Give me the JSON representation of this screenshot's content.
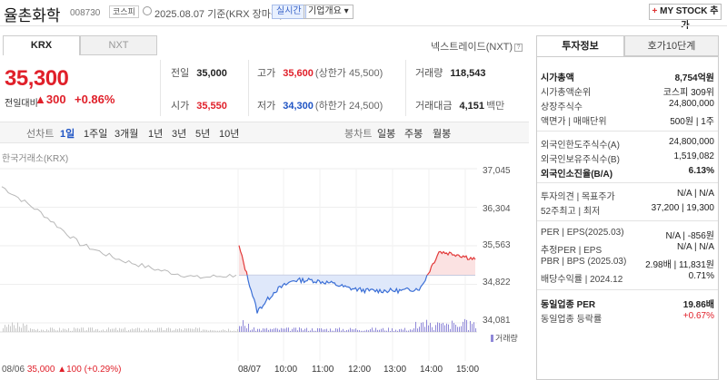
{
  "header": {
    "name": "율촌화학",
    "code": "008730",
    "market_badge": "코스피",
    "date_text": "2025.08.07 기준(KRX 장마감)",
    "realtime_label": "실시간",
    "overview_label": "기업개요 ▾",
    "mystock_label": "MY STOCK 추가",
    "mystock_plus": "+"
  },
  "tabs": {
    "krx": "KRX",
    "nxt": "NXT"
  },
  "next_trade_link": "넥스트레이드(NXT)",
  "qmark": "?",
  "quote": {
    "price": "35,300",
    "change_label": "전일대비",
    "change_abs": "▲300",
    "change_pct": "+0.86%"
  },
  "stats": {
    "prev_close_label": "전일",
    "prev_close": "35,000",
    "high_label": "고가",
    "high": "35,600",
    "upper_limit": "(상한가 45,500)",
    "volume_label": "거래량",
    "volume": "118,543",
    "open_label": "시가",
    "open": "35,550",
    "low_label": "저가",
    "low": "34,300",
    "lower_limit": "(하한가 24,500)",
    "value_label": "거래대금",
    "value": "4,151",
    "value_unit": "백만"
  },
  "periods": {
    "line_label": "선차트",
    "line": [
      "1일",
      "1주일",
      "3개월",
      "1년",
      "3년",
      "5년",
      "10년"
    ],
    "selected": "1일",
    "candle_label": "봉차트",
    "candle": [
      "일봉",
      "주봉",
      "월봉"
    ]
  },
  "chart_data": {
    "type": "line",
    "source": "한국거래소(KRX)",
    "y_ticks": [
      "37,045",
      "36,304",
      "35,563",
      "34,822",
      "34,081"
    ],
    "ylim": [
      34081,
      37045
    ],
    "prev_close": 35000,
    "x_ticks": [
      "08/06",
      "08/07",
      "10:00",
      "11:00",
      "12:00",
      "13:00",
      "14:00",
      "15:00"
    ],
    "volume_label": "거래량",
    "footer": {
      "date": "08/06",
      "price": "35,000",
      "change": "▲100",
      "pct": "(+0.29%)"
    },
    "series": [
      {
        "x": [
          "08/06 09:00",
          "08/06 10:00",
          "08/06 11:00",
          "08/06 12:00",
          "08/06 13:00",
          "08/06 14:00",
          "08/06 15:30"
        ],
        "values": [
          36700,
          36200,
          35600,
          35300,
          35100,
          34950,
          35000
        ]
      },
      {
        "x": [
          "09:00",
          "09:30",
          "10:00",
          "10:30",
          "11:00",
          "11:30",
          "12:00",
          "12:30",
          "13:00",
          "13:30",
          "14:00",
          "14:30",
          "15:00",
          "15:30"
        ],
        "values": [
          35550,
          34300,
          34700,
          34900,
          34900,
          34850,
          34750,
          34700,
          34700,
          34700,
          34750,
          35450,
          35400,
          35300
        ]
      }
    ]
  },
  "info": {
    "tab_info": "투자정보",
    "tab_order": "호가10단계",
    "rows": [
      {
        "label": "시가총액",
        "value": "8,754억원",
        "bold": true
      },
      {
        "label": "시가총액순위",
        "value": "코스피 309위"
      },
      {
        "label": "상장주식수",
        "value": "24,800,000"
      },
      {
        "label": "액면가 | 매매단위",
        "value": "500원 | 1주"
      },
      {
        "label": "외국인한도주식수(A)",
        "value": "24,800,000"
      },
      {
        "label": "외국인보유주식수(B)",
        "value": "1,519,082"
      },
      {
        "label": "외국인소진율(B/A)",
        "value": "6.13%",
        "bold": true
      },
      {
        "label": "투자의견 | 목표주가",
        "value": "N/A | N/A"
      },
      {
        "label": "52주최고 | 최저",
        "value": "37,200 | 19,300"
      },
      {
        "label": "PER | EPS(2025.03)",
        "value": "N/A | -856원"
      },
      {
        "label": "추정PER | EPS",
        "value": "N/A | N/A"
      },
      {
        "label": "PBR | BPS (2025.03)",
        "value": "2.98배 | 11,831원"
      },
      {
        "label": "배당수익률 | 2024.12",
        "value": "0.71%"
      },
      {
        "label": "동일업종 PER",
        "value": "19.86배",
        "bold": true
      },
      {
        "label": "동일업종 등락률",
        "value": "+0.67%",
        "red": true
      }
    ]
  }
}
